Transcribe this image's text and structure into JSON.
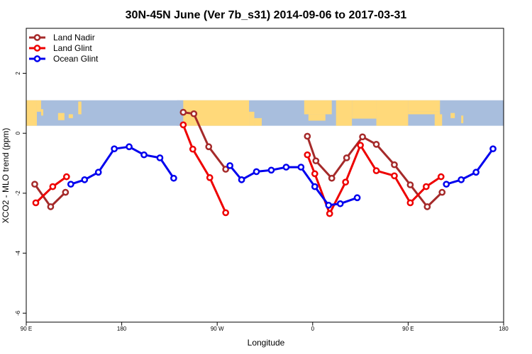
{
  "chart_data": {
    "type": "line",
    "title": "30N-45N June (Ver 7b_s31)   2014-09-06 to 2017-03-31",
    "xlabel": "Longitude",
    "ylabel": "XCO2 - MLO trend (ppm)",
    "xlim": [
      90,
      540
    ],
    "ylim": [
      -6.3,
      3.5
    ],
    "x_ticks": [
      {
        "value": 90,
        "label": "90 E"
      },
      {
        "value": 180,
        "label": "180"
      },
      {
        "value": 270,
        "label": "90 W"
      },
      {
        "value": 360,
        "label": "0"
      },
      {
        "value": 450,
        "label": "90 E"
      },
      {
        "value": 540,
        "label": "180"
      }
    ],
    "y_ticks": [
      {
        "value": 2,
        "label": "2"
      },
      {
        "value": 0,
        "label": "0"
      },
      {
        "value": -2,
        "label": "-2"
      },
      {
        "value": -4,
        "label": "-4"
      },
      {
        "value": -6,
        "label": "-6"
      }
    ],
    "legend_position": "top-left",
    "map_strip": {
      "ymin": 0.25,
      "ymax": 1.1,
      "land_color": "#ffd97a",
      "ocean_color": "#a8bedd"
    },
    "series": [
      {
        "name": "Land Nadir",
        "color": "#a52a2a",
        "segments": [
          [
            [
              98,
              -1.7
            ],
            [
              113,
              -2.45
            ],
            [
              127,
              -1.97
            ]
          ],
          [
            [
              238,
              0.7
            ],
            [
              248,
              0.65
            ],
            [
              262,
              -0.45
            ],
            [
              278,
              -1.2
            ]
          ],
          [
            [
              355,
              -0.1
            ],
            [
              363,
              -0.92
            ],
            [
              378,
              -1.5
            ],
            [
              392,
              -0.82
            ],
            [
              407,
              -0.12
            ],
            [
              420,
              -0.37
            ],
            [
              437,
              -1.05
            ],
            [
              452,
              -1.72
            ],
            [
              468,
              -2.45
            ],
            [
              482,
              -1.97
            ]
          ]
        ]
      },
      {
        "name": "Land Glint",
        "color": "#ee0000",
        "segments": [
          [
            [
              99,
              -2.32
            ],
            [
              115,
              -1.78
            ],
            [
              128,
              -1.45
            ]
          ],
          [
            [
              238,
              0.28
            ],
            [
              247,
              -0.53
            ],
            [
              263,
              -1.48
            ],
            [
              278,
              -2.65
            ]
          ],
          [
            [
              355,
              -0.72
            ],
            [
              362,
              -1.35
            ],
            [
              376,
              -2.68
            ],
            [
              391,
              -1.63
            ],
            [
              405,
              -0.4
            ],
            [
              420,
              -1.25
            ],
            [
              437,
              -1.42
            ],
            [
              452,
              -2.32
            ],
            [
              467,
              -1.78
            ],
            [
              481,
              -1.45
            ]
          ]
        ]
      },
      {
        "name": "Ocean Glint",
        "color": "#0000ee",
        "segments": [
          [
            [
              132,
              -1.7
            ],
            [
              145,
              -1.55
            ],
            [
              158,
              -1.3
            ],
            [
              173,
              -0.52
            ],
            [
              187,
              -0.45
            ],
            [
              201,
              -0.72
            ],
            [
              216,
              -0.82
            ],
            [
              229,
              -1.5
            ]
          ],
          [
            [
              282,
              -1.08
            ],
            [
              293,
              -1.55
            ],
            [
              307,
              -1.28
            ],
            [
              321,
              -1.23
            ],
            [
              335,
              -1.13
            ],
            [
              349,
              -1.13
            ],
            [
              362,
              -1.78
            ],
            [
              375,
              -2.4
            ],
            [
              386,
              -2.35
            ],
            [
              402,
              -2.15
            ]
          ],
          [
            [
              486,
              -1.7
            ],
            [
              500,
              -1.55
            ],
            [
              514,
              -1.3
            ],
            [
              530,
              -0.52
            ]
          ]
        ]
      }
    ]
  }
}
